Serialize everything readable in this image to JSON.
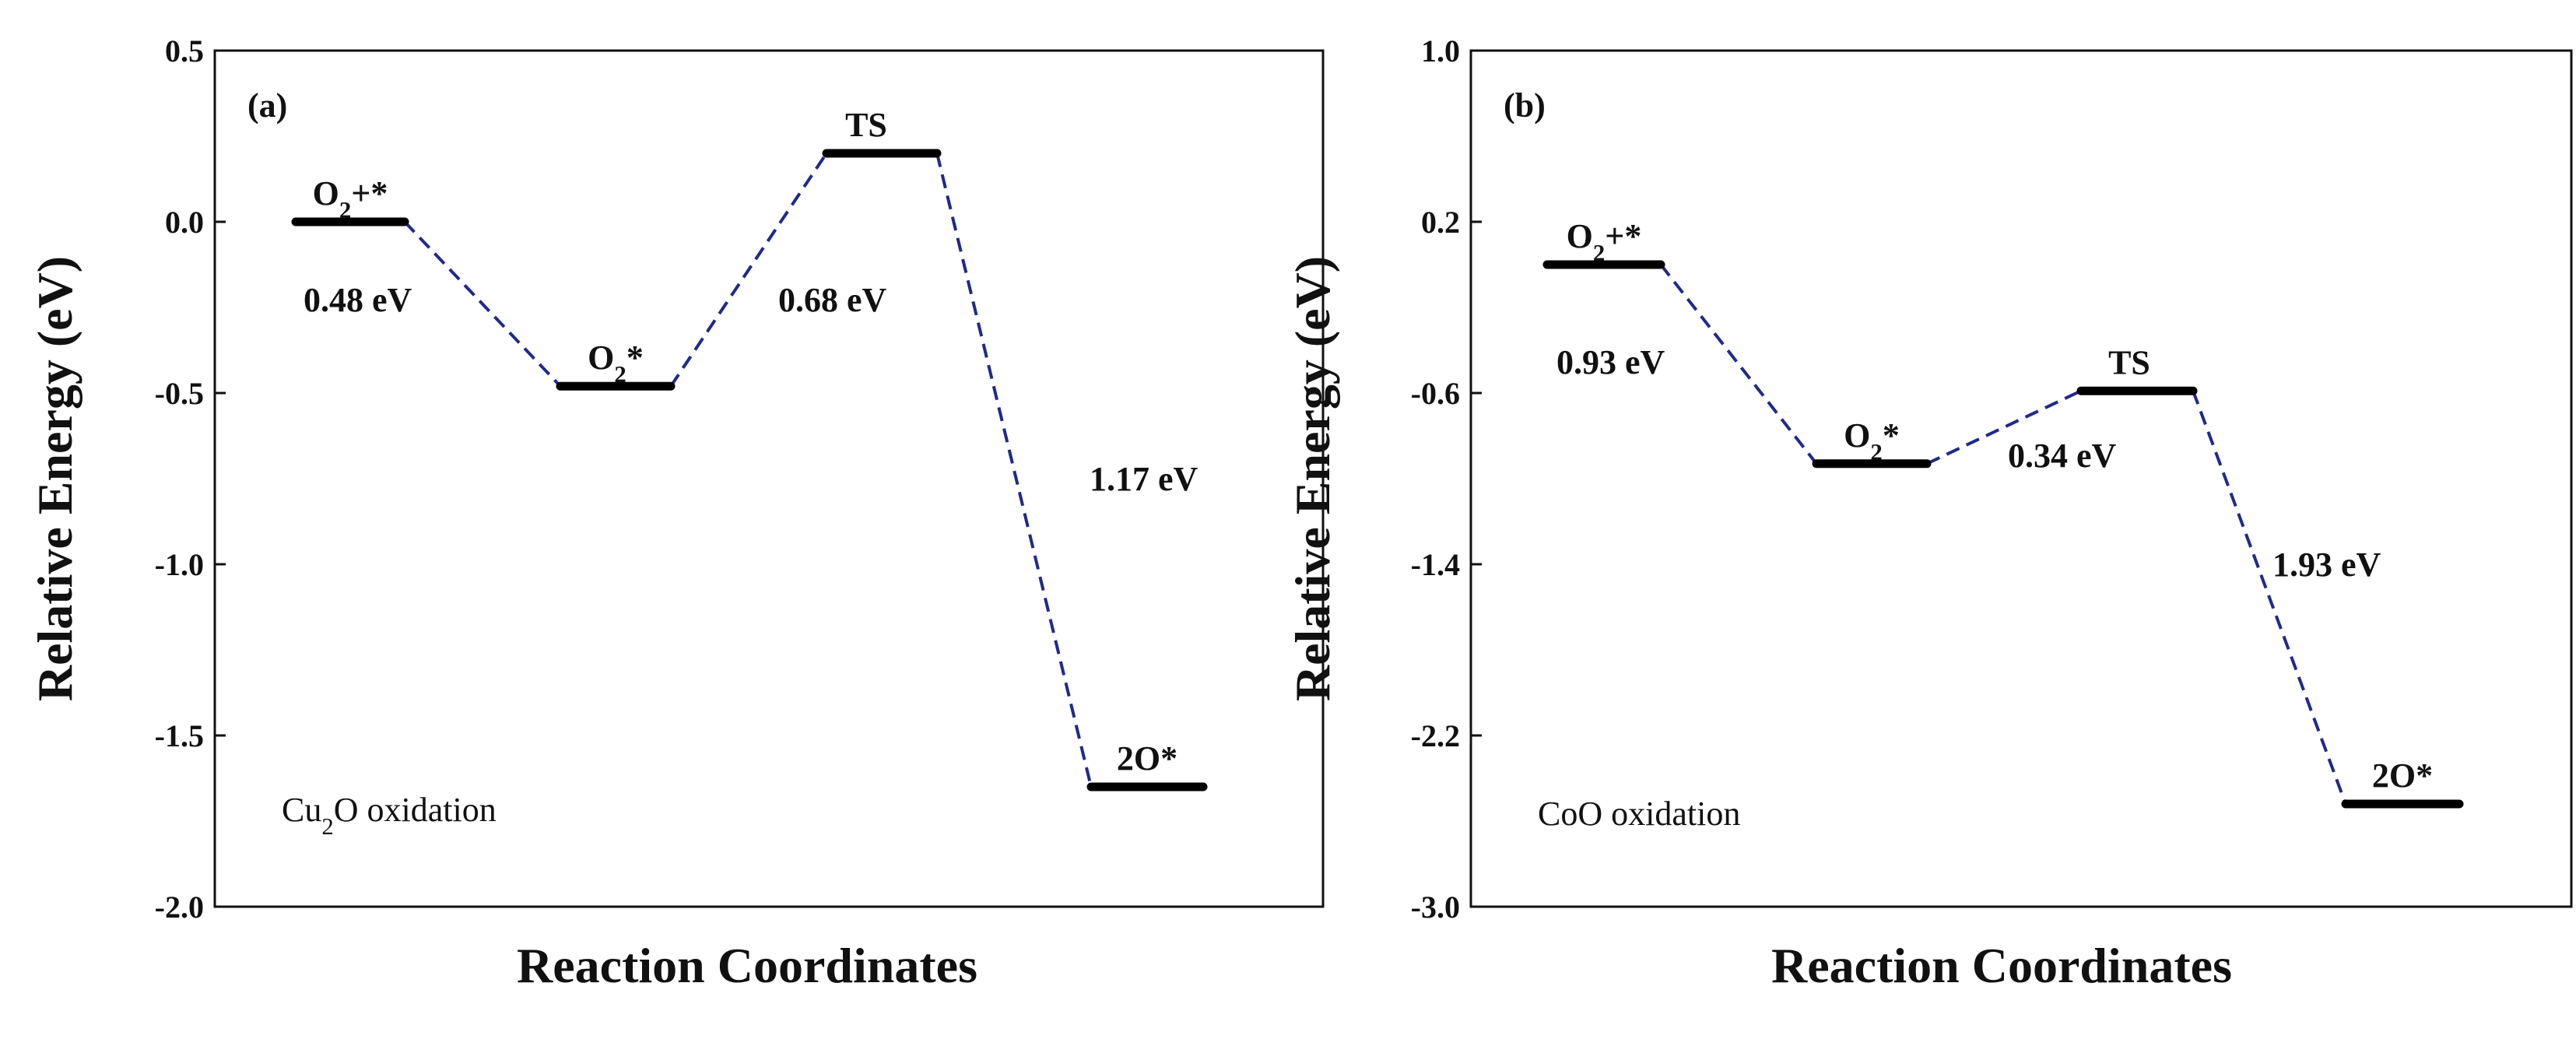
{
  "colors": {
    "level": "#000000",
    "connector": "#1f2a8a",
    "axis": "#111111"
  },
  "chart_data": [
    {
      "type": "energy-profile",
      "panel": "(a)",
      "caption": "Cu₂O oxidation",
      "xlabel": "Reaction Coordinates",
      "ylabel": "Relative Energy (eV)",
      "ylim": [
        -2.0,
        0.5
      ],
      "yticks": [
        0.5,
        0.0,
        -0.5,
        -1.0,
        -1.5,
        -2.0
      ],
      "ytick_labels": [
        "0.5",
        "0.0",
        "-0.5",
        "-1.0",
        "-1.5",
        "-2.0"
      ],
      "states": [
        {
          "label": "O₂+*",
          "energy": 0.0
        },
        {
          "label": "O₂*",
          "energy": -0.48
        },
        {
          "label": "TS",
          "energy": 0.2
        },
        {
          "label": "2O*",
          "energy": -1.65
        }
      ],
      "transitions": [
        "0.48 eV",
        "0.68 eV",
        "1.17 eV"
      ]
    },
    {
      "type": "energy-profile",
      "panel": "(b)",
      "caption": "CoO oxidation",
      "xlabel": "Reaction Coordinates",
      "ylabel": "Relative Energy (eV)",
      "ylim": [
        -3.0,
        1.0
      ],
      "yticks": [
        1.0,
        0.2,
        -0.6,
        -1.4,
        -2.2,
        -3.0
      ],
      "ytick_labels": [
        "1.0",
        "0.2",
        "-0.6",
        "-1.4",
        "-2.2",
        "-3.0"
      ],
      "states": [
        {
          "label": "O₂+*",
          "energy": 0.0
        },
        {
          "label": "O₂*",
          "energy": -0.93
        },
        {
          "label": "TS",
          "energy": -0.59
        },
        {
          "label": "2O*",
          "energy": -2.52
        }
      ],
      "transitions": [
        "0.93 eV",
        "0.34 eV",
        "1.93 eV"
      ]
    }
  ]
}
